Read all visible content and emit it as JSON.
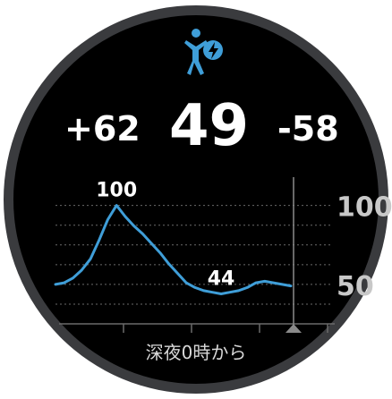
{
  "screen": {
    "icon": "body-battery-icon",
    "charged": "+62",
    "current": "49",
    "drained": "-58",
    "footer": "深夜0時から"
  },
  "colors": {
    "accent": "#3f9ed8",
    "background": "#000000",
    "bezel": "#3a3b3e",
    "text": "#ffffff",
    "grid": "#6a6a6a"
  },
  "chart_data": {
    "type": "line",
    "title": "",
    "xlabel": "",
    "ylabel": "",
    "ylim": [
      25,
      110
    ],
    "y_ticks": [
      "100",
      "50"
    ],
    "y_tick_values": [
      100,
      50
    ],
    "grid": true,
    "annotations": [
      {
        "label": "100",
        "x": 7,
        "y": 100
      },
      {
        "label": "44",
        "x": 19,
        "y": 44
      }
    ],
    "series": [
      {
        "values": [
          [
            0,
            50
          ],
          [
            1,
            51
          ],
          [
            2,
            54
          ],
          [
            3,
            59
          ],
          [
            4,
            66
          ],
          [
            5,
            78
          ],
          [
            6,
            91
          ],
          [
            7,
            100
          ],
          [
            8,
            93
          ],
          [
            9,
            87
          ],
          [
            10,
            82
          ],
          [
            11,
            76
          ],
          [
            12,
            70
          ],
          [
            13,
            63
          ],
          [
            14,
            57
          ],
          [
            15,
            51
          ],
          [
            16,
            48
          ],
          [
            17,
            46
          ],
          [
            18,
            45
          ],
          [
            19,
            44
          ],
          [
            20,
            45
          ],
          [
            21,
            46
          ],
          [
            22,
            48
          ],
          [
            23,
            51
          ],
          [
            24,
            52
          ],
          [
            25,
            51
          ],
          [
            26,
            50
          ],
          [
            27,
            49
          ]
        ]
      }
    ],
    "x_ticks": 4
  }
}
